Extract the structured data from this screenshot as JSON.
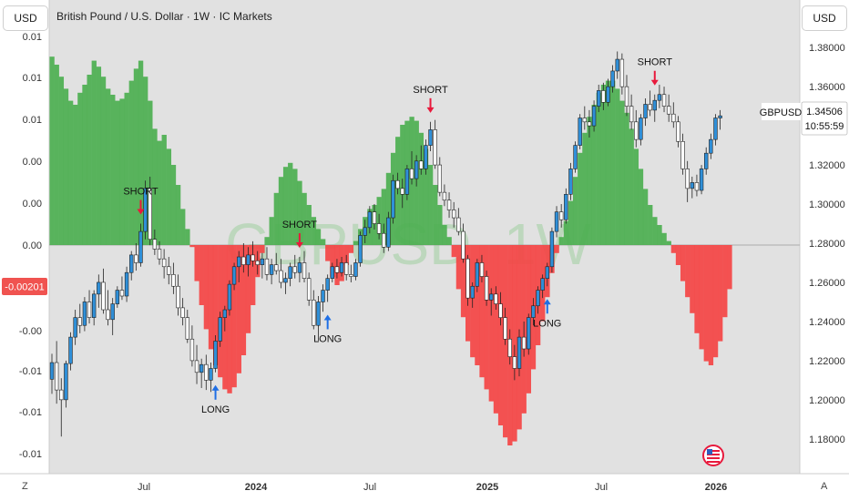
{
  "toolbar": {
    "left_currency_button": "USD",
    "right_currency_button": "USD",
    "timezone_button": "Z",
    "auto_scale_button": "A"
  },
  "header": {
    "title": "British Pound / U.S. Dollar · 1W · IC Markets"
  },
  "watermark": "GBPUSD, 1W",
  "price_badge": {
    "symbol": "GBPUSD",
    "price": "1.34506",
    "countdown": "10:55:59"
  },
  "left_axis_badge": {
    "value": "-0.00201",
    "color": "#f05350"
  },
  "colors": {
    "bull_candle": "#2f8fd8",
    "bear_candle": "#ffffff",
    "hist_positive": "#4caf50",
    "hist_negative": "#f44444",
    "short_arrow": "#e8193c",
    "long_arrow": "#1f6fe5",
    "background": "#e1e1e1"
  },
  "chart_data": {
    "type": "candlestick with oscillator histogram",
    "symbol": "GBPUSD",
    "timeframe": "1W",
    "x_ticks": [
      "Jul",
      "2024",
      "Jul",
      "2025",
      "Jul",
      "2026"
    ],
    "right_axis": {
      "ticks": [
        "1.38000",
        "1.36000",
        "1.34000",
        "1.32000",
        "1.30000",
        "1.28000",
        "1.26000",
        "1.24000",
        "1.22000",
        "1.20000",
        "1.18000"
      ],
      "range": [
        1.172,
        1.388
      ]
    },
    "left_axis": {
      "ticks": [
        "0.01",
        "0.01",
        "0.01",
        "0.00",
        "0.00",
        "0.00",
        "-0.00",
        "-0.01",
        "-0.01",
        "-0.01"
      ],
      "zero_line": "0.00",
      "current_value": -0.00201
    },
    "candles": [
      {
        "o": 1.2105,
        "h": 1.2235,
        "l": 1.203,
        "c": 1.219
      },
      {
        "o": 1.219,
        "h": 1.23,
        "l": 1.198,
        "c": 1.205
      },
      {
        "o": 1.205,
        "h": 1.211,
        "l": 1.1812,
        "c": 1.2
      },
      {
        "o": 1.2,
        "h": 1.22,
        "l": 1.196,
        "c": 1.2185
      },
      {
        "o": 1.2185,
        "h": 1.2345,
        "l": 1.215,
        "c": 1.232
      },
      {
        "o": 1.232,
        "h": 1.246,
        "l": 1.228,
        "c": 1.242
      },
      {
        "o": 1.242,
        "h": 1.249,
        "l": 1.234,
        "c": 1.238
      },
      {
        "o": 1.238,
        "h": 1.2525,
        "l": 1.235,
        "c": 1.25
      },
      {
        "o": 1.25,
        "h": 1.256,
        "l": 1.239,
        "c": 1.242
      },
      {
        "o": 1.242,
        "h": 1.256,
        "l": 1.238,
        "c": 1.254
      },
      {
        "o": 1.254,
        "h": 1.264,
        "l": 1.247,
        "c": 1.26
      },
      {
        "o": 1.26,
        "h": 1.267,
        "l": 1.244,
        "c": 1.246
      },
      {
        "o": 1.246,
        "h": 1.256,
        "l": 1.238,
        "c": 1.241
      },
      {
        "o": 1.241,
        "h": 1.252,
        "l": 1.233,
        "c": 1.249
      },
      {
        "o": 1.249,
        "h": 1.258,
        "l": 1.247,
        "c": 1.256
      },
      {
        "o": 1.256,
        "h": 1.263,
        "l": 1.251,
        "c": 1.253
      },
      {
        "o": 1.253,
        "h": 1.268,
        "l": 1.25,
        "c": 1.265
      },
      {
        "o": 1.265,
        "h": 1.276,
        "l": 1.261,
        "c": 1.274
      },
      {
        "o": 1.274,
        "h": 1.28,
        "l": 1.266,
        "c": 1.27
      },
      {
        "o": 1.27,
        "h": 1.29,
        "l": 1.268,
        "c": 1.286
      },
      {
        "o": 1.286,
        "h": 1.312,
        "l": 1.282,
        "c": 1.308
      },
      {
        "o": 1.308,
        "h": 1.314,
        "l": 1.279,
        "c": 1.282
      },
      {
        "o": 1.282,
        "h": 1.287,
        "l": 1.274,
        "c": 1.277
      },
      {
        "o": 1.277,
        "h": 1.281,
        "l": 1.269,
        "c": 1.272
      },
      {
        "o": 1.272,
        "h": 1.277,
        "l": 1.262,
        "c": 1.268
      },
      {
        "o": 1.268,
        "h": 1.273,
        "l": 1.259,
        "c": 1.264
      },
      {
        "o": 1.264,
        "h": 1.27,
        "l": 1.254,
        "c": 1.258
      },
      {
        "o": 1.258,
        "h": 1.264,
        "l": 1.243,
        "c": 1.247
      },
      {
        "o": 1.247,
        "h": 1.252,
        "l": 1.238,
        "c": 1.242
      },
      {
        "o": 1.242,
        "h": 1.246,
        "l": 1.229,
        "c": 1.231
      },
      {
        "o": 1.231,
        "h": 1.238,
        "l": 1.217,
        "c": 1.22
      },
      {
        "o": 1.22,
        "h": 1.228,
        "l": 1.208,
        "c": 1.214
      },
      {
        "o": 1.214,
        "h": 1.221,
        "l": 1.206,
        "c": 1.218
      },
      {
        "o": 1.218,
        "h": 1.223,
        "l": 1.205,
        "c": 1.21
      },
      {
        "o": 1.21,
        "h": 1.219,
        "l": 1.204,
        "c": 1.216
      },
      {
        "o": 1.216,
        "h": 1.233,
        "l": 1.214,
        "c": 1.23
      },
      {
        "o": 1.23,
        "h": 1.245,
        "l": 1.227,
        "c": 1.242
      },
      {
        "o": 1.242,
        "h": 1.248,
        "l": 1.235,
        "c": 1.246
      },
      {
        "o": 1.246,
        "h": 1.261,
        "l": 1.243,
        "c": 1.259
      },
      {
        "o": 1.259,
        "h": 1.27,
        "l": 1.256,
        "c": 1.268
      },
      {
        "o": 1.268,
        "h": 1.276,
        "l": 1.26,
        "c": 1.273
      },
      {
        "o": 1.273,
        "h": 1.28,
        "l": 1.265,
        "c": 1.269
      },
      {
        "o": 1.269,
        "h": 1.278,
        "l": 1.263,
        "c": 1.274
      },
      {
        "o": 1.274,
        "h": 1.281,
        "l": 1.268,
        "c": 1.271
      },
      {
        "o": 1.271,
        "h": 1.276,
        "l": 1.264,
        "c": 1.269
      },
      {
        "o": 1.269,
        "h": 1.275,
        "l": 1.262,
        "c": 1.272
      },
      {
        "o": 1.272,
        "h": 1.278,
        "l": 1.261,
        "c": 1.264
      },
      {
        "o": 1.264,
        "h": 1.272,
        "l": 1.259,
        "c": 1.269
      },
      {
        "o": 1.269,
        "h": 1.275,
        "l": 1.264,
        "c": 1.266
      },
      {
        "o": 1.266,
        "h": 1.272,
        "l": 1.257,
        "c": 1.26
      },
      {
        "o": 1.26,
        "h": 1.265,
        "l": 1.254,
        "c": 1.262
      },
      {
        "o": 1.262,
        "h": 1.27,
        "l": 1.258,
        "c": 1.268
      },
      {
        "o": 1.268,
        "h": 1.274,
        "l": 1.262,
        "c": 1.265
      },
      {
        "o": 1.265,
        "h": 1.273,
        "l": 1.26,
        "c": 1.27
      },
      {
        "o": 1.27,
        "h": 1.276,
        "l": 1.26,
        "c": 1.262
      },
      {
        "o": 1.262,
        "h": 1.265,
        "l": 1.248,
        "c": 1.251
      },
      {
        "o": 1.251,
        "h": 1.256,
        "l": 1.236,
        "c": 1.238
      },
      {
        "o": 1.238,
        "h": 1.253,
        "l": 1.23,
        "c": 1.25
      },
      {
        "o": 1.25,
        "h": 1.259,
        "l": 1.245,
        "c": 1.256
      },
      {
        "o": 1.256,
        "h": 1.264,
        "l": 1.25,
        "c": 1.262
      },
      {
        "o": 1.262,
        "h": 1.27,
        "l": 1.26,
        "c": 1.268
      },
      {
        "o": 1.268,
        "h": 1.272,
        "l": 1.262,
        "c": 1.265
      },
      {
        "o": 1.265,
        "h": 1.273,
        "l": 1.263,
        "c": 1.27
      },
      {
        "o": 1.27,
        "h": 1.274,
        "l": 1.261,
        "c": 1.264
      },
      {
        "o": 1.264,
        "h": 1.269,
        "l": 1.26,
        "c": 1.263
      },
      {
        "o": 1.263,
        "h": 1.272,
        "l": 1.261,
        "c": 1.27
      },
      {
        "o": 1.27,
        "h": 1.286,
        "l": 1.268,
        "c": 1.284
      },
      {
        "o": 1.284,
        "h": 1.292,
        "l": 1.28,
        "c": 1.288
      },
      {
        "o": 1.288,
        "h": 1.299,
        "l": 1.285,
        "c": 1.296
      },
      {
        "o": 1.296,
        "h": 1.3,
        "l": 1.287,
        "c": 1.29
      },
      {
        "o": 1.29,
        "h": 1.295,
        "l": 1.282,
        "c": 1.285
      },
      {
        "o": 1.285,
        "h": 1.29,
        "l": 1.275,
        "c": 1.278
      },
      {
        "o": 1.278,
        "h": 1.296,
        "l": 1.276,
        "c": 1.293
      },
      {
        "o": 1.293,
        "h": 1.315,
        "l": 1.29,
        "c": 1.312
      },
      {
        "o": 1.312,
        "h": 1.316,
        "l": 1.305,
        "c": 1.308
      },
      {
        "o": 1.308,
        "h": 1.313,
        "l": 1.298,
        "c": 1.305
      },
      {
        "o": 1.305,
        "h": 1.32,
        "l": 1.302,
        "c": 1.318
      },
      {
        "o": 1.318,
        "h": 1.327,
        "l": 1.31,
        "c": 1.313
      },
      {
        "o": 1.313,
        "h": 1.325,
        "l": 1.309,
        "c": 1.322
      },
      {
        "o": 1.322,
        "h": 1.33,
        "l": 1.315,
        "c": 1.318
      },
      {
        "o": 1.318,
        "h": 1.333,
        "l": 1.315,
        "c": 1.33
      },
      {
        "o": 1.33,
        "h": 1.342,
        "l": 1.327,
        "c": 1.338
      },
      {
        "o": 1.338,
        "h": 1.343,
        "l": 1.318,
        "c": 1.32
      },
      {
        "o": 1.32,
        "h": 1.324,
        "l": 1.304,
        "c": 1.306
      },
      {
        "o": 1.306,
        "h": 1.31,
        "l": 1.299,
        "c": 1.302
      },
      {
        "o": 1.302,
        "h": 1.306,
        "l": 1.293,
        "c": 1.297
      },
      {
        "o": 1.297,
        "h": 1.301,
        "l": 1.288,
        "c": 1.293
      },
      {
        "o": 1.293,
        "h": 1.298,
        "l": 1.284,
        "c": 1.286
      },
      {
        "o": 1.286,
        "h": 1.29,
        "l": 1.27,
        "c": 1.272
      },
      {
        "o": 1.272,
        "h": 1.274,
        "l": 1.248,
        "c": 1.252
      },
      {
        "o": 1.252,
        "h": 1.26,
        "l": 1.247,
        "c": 1.258
      },
      {
        "o": 1.258,
        "h": 1.272,
        "l": 1.255,
        "c": 1.27
      },
      {
        "o": 1.27,
        "h": 1.274,
        "l": 1.26,
        "c": 1.263
      },
      {
        "o": 1.263,
        "h": 1.266,
        "l": 1.248,
        "c": 1.251
      },
      {
        "o": 1.251,
        "h": 1.257,
        "l": 1.243,
        "c": 1.254
      },
      {
        "o": 1.254,
        "h": 1.258,
        "l": 1.246,
        "c": 1.249
      },
      {
        "o": 1.249,
        "h": 1.255,
        "l": 1.238,
        "c": 1.242
      },
      {
        "o": 1.242,
        "h": 1.247,
        "l": 1.228,
        "c": 1.231
      },
      {
        "o": 1.231,
        "h": 1.236,
        "l": 1.218,
        "c": 1.222
      },
      {
        "o": 1.222,
        "h": 1.228,
        "l": 1.21,
        "c": 1.216
      },
      {
        "o": 1.216,
        "h": 1.236,
        "l": 1.212,
        "c": 1.232
      },
      {
        "o": 1.232,
        "h": 1.24,
        "l": 1.222,
        "c": 1.226
      },
      {
        "o": 1.226,
        "h": 1.244,
        "l": 1.223,
        "c": 1.242
      },
      {
        "o": 1.242,
        "h": 1.252,
        "l": 1.238,
        "c": 1.248
      },
      {
        "o": 1.248,
        "h": 1.258,
        "l": 1.244,
        "c": 1.256
      },
      {
        "o": 1.256,
        "h": 1.264,
        "l": 1.252,
        "c": 1.262
      },
      {
        "o": 1.262,
        "h": 1.27,
        "l": 1.258,
        "c": 1.268
      },
      {
        "o": 1.268,
        "h": 1.288,
        "l": 1.265,
        "c": 1.286
      },
      {
        "o": 1.286,
        "h": 1.299,
        "l": 1.283,
        "c": 1.296
      },
      {
        "o": 1.296,
        "h": 1.3,
        "l": 1.288,
        "c": 1.292
      },
      {
        "o": 1.292,
        "h": 1.308,
        "l": 1.29,
        "c": 1.305
      },
      {
        "o": 1.305,
        "h": 1.321,
        "l": 1.302,
        "c": 1.318
      },
      {
        "o": 1.318,
        "h": 1.332,
        "l": 1.316,
        "c": 1.33
      },
      {
        "o": 1.33,
        "h": 1.346,
        "l": 1.328,
        "c": 1.344
      },
      {
        "o": 1.344,
        "h": 1.35,
        "l": 1.338,
        "c": 1.342
      },
      {
        "o": 1.342,
        "h": 1.348,
        "l": 1.334,
        "c": 1.34
      },
      {
        "o": 1.34,
        "h": 1.353,
        "l": 1.337,
        "c": 1.35
      },
      {
        "o": 1.35,
        "h": 1.361,
        "l": 1.347,
        "c": 1.358
      },
      {
        "o": 1.358,
        "h": 1.362,
        "l": 1.348,
        "c": 1.352
      },
      {
        "o": 1.352,
        "h": 1.364,
        "l": 1.35,
        "c": 1.36
      },
      {
        "o": 1.36,
        "h": 1.371,
        "l": 1.357,
        "c": 1.368
      },
      {
        "o": 1.368,
        "h": 1.378,
        "l": 1.364,
        "c": 1.374
      },
      {
        "o": 1.374,
        "h": 1.377,
        "l": 1.356,
        "c": 1.36
      },
      {
        "o": 1.36,
        "h": 1.366,
        "l": 1.345,
        "c": 1.35
      },
      {
        "o": 1.35,
        "h": 1.356,
        "l": 1.338,
        "c": 1.342
      },
      {
        "o": 1.342,
        "h": 1.348,
        "l": 1.329,
        "c": 1.333
      },
      {
        "o": 1.333,
        "h": 1.346,
        "l": 1.33,
        "c": 1.344
      },
      {
        "o": 1.344,
        "h": 1.354,
        "l": 1.34,
        "c": 1.351
      },
      {
        "o": 1.351,
        "h": 1.358,
        "l": 1.345,
        "c": 1.348
      },
      {
        "o": 1.348,
        "h": 1.356,
        "l": 1.342,
        "c": 1.353
      },
      {
        "o": 1.353,
        "h": 1.361,
        "l": 1.349,
        "c": 1.356
      },
      {
        "o": 1.356,
        "h": 1.36,
        "l": 1.347,
        "c": 1.35
      },
      {
        "o": 1.35,
        "h": 1.356,
        "l": 1.342,
        "c": 1.346
      },
      {
        "o": 1.346,
        "h": 1.352,
        "l": 1.339,
        "c": 1.342
      },
      {
        "o": 1.342,
        "h": 1.345,
        "l": 1.329,
        "c": 1.332
      },
      {
        "o": 1.332,
        "h": 1.336,
        "l": 1.315,
        "c": 1.318
      },
      {
        "o": 1.318,
        "h": 1.322,
        "l": 1.301,
        "c": 1.308
      },
      {
        "o": 1.308,
        "h": 1.314,
        "l": 1.303,
        "c": 1.311
      },
      {
        "o": 1.311,
        "h": 1.315,
        "l": 1.304,
        "c": 1.307
      },
      {
        "o": 1.307,
        "h": 1.32,
        "l": 1.305,
        "c": 1.318
      },
      {
        "o": 1.318,
        "h": 1.329,
        "l": 1.315,
        "c": 1.326
      },
      {
        "o": 1.326,
        "h": 1.336,
        "l": 1.323,
        "c": 1.333
      },
      {
        "o": 1.333,
        "h": 1.346,
        "l": 1.33,
        "c": 1.344
      },
      {
        "o": 1.344,
        "h": 1.348,
        "l": 1.338,
        "c": 1.3451
      }
    ],
    "histogram_right_half": [
      0.008,
      0.0079,
      0.0077,
      0.0074,
      0.0071,
      0.0068,
      0.0064,
      0.006,
      0.0057,
      0.0055,
      0.0053,
      0.0051,
      0.0049,
      0.0047,
      0.0045,
      0.0043,
      0.0041,
      0.0038,
      0.0035,
      0.0032,
      0.0028,
      0.0024,
      0.0019,
      0.0015,
      0.0011,
      0.0008,
      0.0005,
      0.0003,
      0.0002,
      0.0001
    ],
    "annotations": [
      {
        "label": "SHORT",
        "type": "sell",
        "index": 19
      },
      {
        "label": "LONG",
        "type": "buy",
        "index": 35
      },
      {
        "label": "SHORT",
        "type": "sell",
        "index": 53
      },
      {
        "label": "LONG",
        "type": "buy",
        "index": 59
      },
      {
        "label": "SHORT",
        "type": "sell",
        "index": 81
      },
      {
        "label": "LONG",
        "type": "buy",
        "index": 106
      },
      {
        "label": "SHORT",
        "type": "sell",
        "index": 129
      }
    ]
  }
}
